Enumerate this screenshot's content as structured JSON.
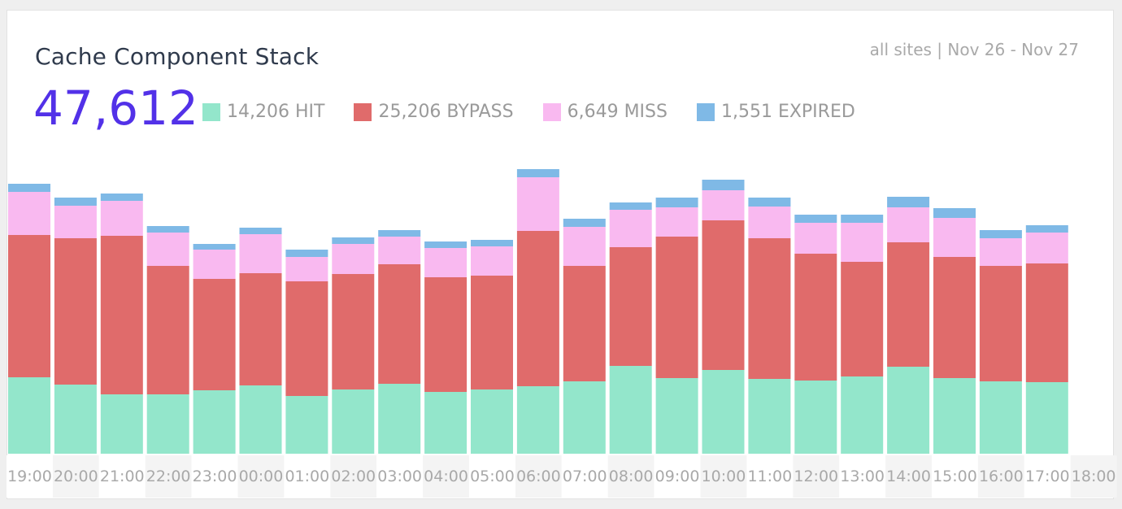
{
  "header": {
    "title": "Cache Component Stack",
    "meta": "all sites | Nov 26 - Nov 27",
    "total": "47,612"
  },
  "legend": [
    {
      "label": "14,206 HIT",
      "color": "#93e6cb"
    },
    {
      "label": "25,206 BYPASS",
      "color": "#e06b6b"
    },
    {
      "label": "6,649 MISS",
      "color": "#f9b9f0"
    },
    {
      "label": "1,551 EXPIRED",
      "color": "#7fb9e6"
    }
  ],
  "chart_data": {
    "type": "bar",
    "stacked": true,
    "categories": [
      "19:00",
      "20:00",
      "21:00",
      "22:00",
      "23:00",
      "00:00",
      "01:00",
      "02:00",
      "03:00",
      "04:00",
      "05:00",
      "06:00",
      "07:00",
      "08:00",
      "09:00",
      "10:00",
      "11:00",
      "12:00",
      "13:00",
      "14:00",
      "15:00",
      "16:00",
      "17:00",
      "18:00"
    ],
    "series": [
      {
        "name": "HIT",
        "color": "#93e6cb",
        "values": [
          94,
          85,
          73,
          73,
          78,
          84,
          71,
          79,
          86,
          76,
          79,
          83,
          89,
          108,
          93,
          103,
          92,
          90,
          95,
          107,
          93,
          89,
          88,
          0
        ]
      },
      {
        "name": "BYPASS",
        "color": "#e06b6b",
        "values": [
          175,
          180,
          195,
          158,
          137,
          138,
          141,
          142,
          147,
          141,
          140,
          191,
          142,
          146,
          174,
          184,
          173,
          156,
          141,
          153,
          149,
          142,
          146,
          0
        ]
      },
      {
        "name": "MISS",
        "color": "#f9b9f0",
        "values": [
          53,
          40,
          43,
          41,
          36,
          48,
          30,
          37,
          34,
          36,
          36,
          66,
          48,
          46,
          36,
          37,
          39,
          38,
          48,
          43,
          48,
          34,
          38,
          0
        ]
      },
      {
        "name": "EXPIRED",
        "color": "#7fb9e6",
        "values": [
          10,
          10,
          9,
          8,
          7,
          8,
          9,
          8,
          8,
          8,
          8,
          10,
          10,
          9,
          12,
          13,
          11,
          10,
          10,
          13,
          12,
          10,
          9,
          0
        ]
      }
    ],
    "ylim": [
      0,
      360
    ],
    "grid": false,
    "legend_position": "top"
  }
}
